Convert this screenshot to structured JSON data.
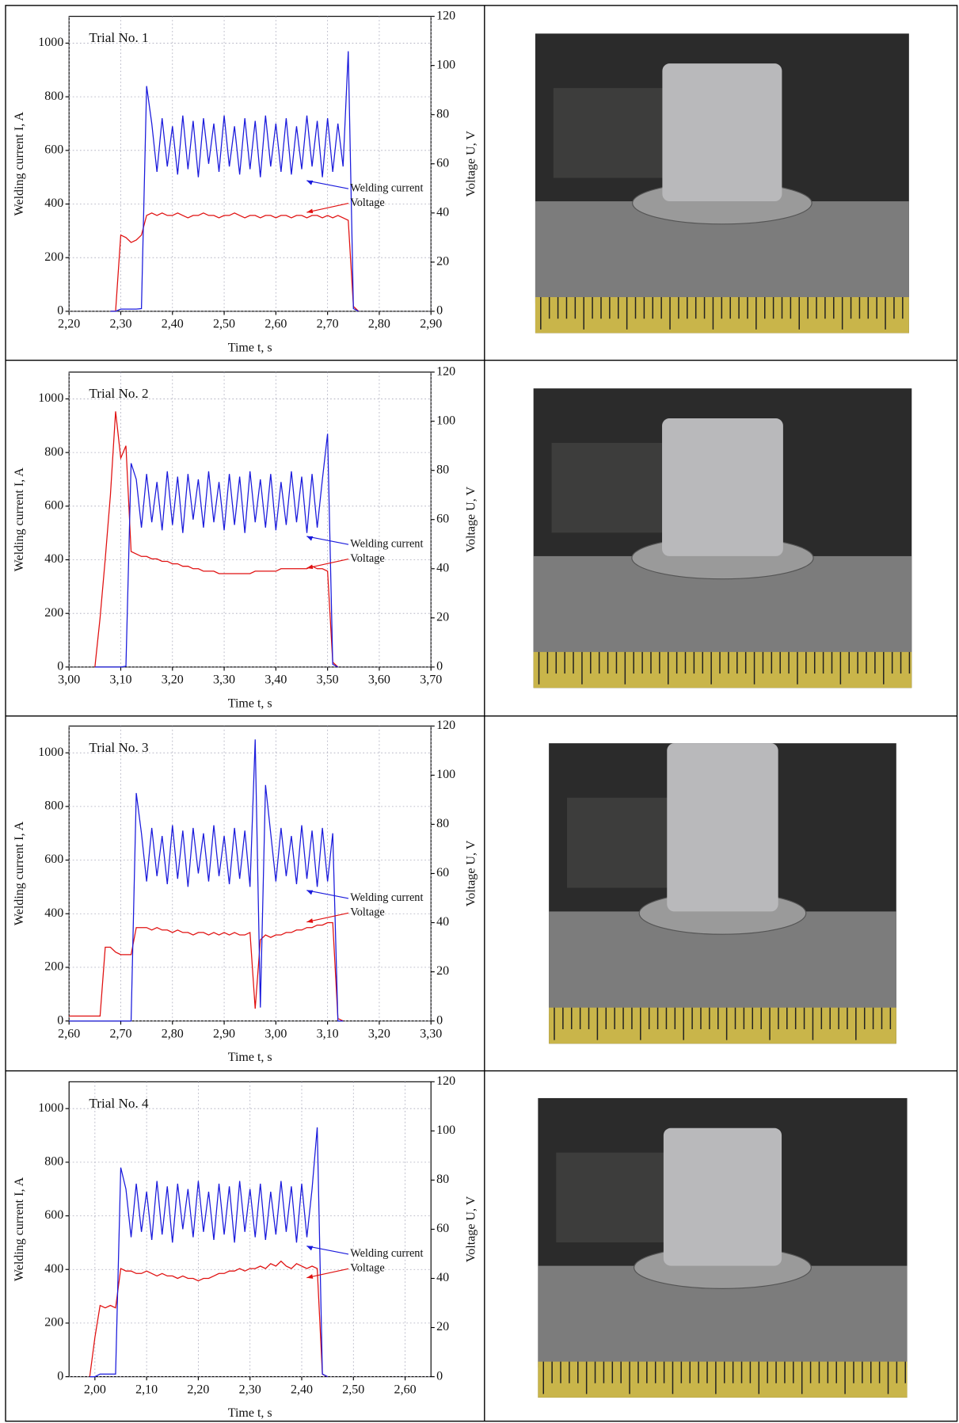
{
  "chart_data": [
    {
      "type": "line",
      "title": "Trial No. 1",
      "xlabel": "Time t, s",
      "ylabel": "Welding current I, A",
      "y2label": "Voltage U, V",
      "xlim": [
        2.2,
        2.9
      ],
      "xticks": [
        {
          "value": 2.2,
          "label": "2,20"
        },
        {
          "value": 2.3,
          "label": "2,30"
        },
        {
          "value": 2.4,
          "label": "2,40"
        },
        {
          "value": 2.5,
          "label": "2,50"
        },
        {
          "value": 2.6,
          "label": "2,60"
        },
        {
          "value": 2.7,
          "label": "2,70"
        },
        {
          "value": 2.8,
          "label": "2,80"
        },
        {
          "value": 2.9,
          "label": "2,90"
        }
      ],
      "ylim": [
        0,
        1100
      ],
      "yticks": [
        0,
        200,
        400,
        600,
        800,
        1000
      ],
      "y2lim": [
        0,
        120
      ],
      "y2ticks": [
        0,
        20,
        40,
        60,
        80,
        100,
        120
      ],
      "grid": true,
      "x": [
        2.28,
        2.29,
        2.3,
        2.31,
        2.32,
        2.33,
        2.34,
        2.35,
        2.36,
        2.37,
        2.38,
        2.39,
        2.4,
        2.41,
        2.42,
        2.43,
        2.44,
        2.45,
        2.46,
        2.47,
        2.48,
        2.49,
        2.5,
        2.51,
        2.52,
        2.53,
        2.54,
        2.55,
        2.56,
        2.57,
        2.58,
        2.59,
        2.6,
        2.61,
        2.62,
        2.63,
        2.64,
        2.65,
        2.66,
        2.67,
        2.68,
        2.69,
        2.7,
        2.71,
        2.72,
        2.73,
        2.74,
        2.75,
        2.76
      ],
      "series": [
        {
          "name": "Welding current",
          "color": "#1a1adc",
          "values": [
            0,
            0,
            8,
            8,
            8,
            8,
            10,
            840,
            700,
            520,
            720,
            540,
            690,
            510,
            730,
            530,
            710,
            500,
            720,
            550,
            700,
            520,
            730,
            540,
            690,
            510,
            720,
            530,
            710,
            500,
            730,
            540,
            700,
            520,
            720,
            510,
            690,
            530,
            730,
            540,
            710,
            500,
            720,
            520,
            700,
            540,
            970,
            10,
            0
          ]
        },
        {
          "name": "Voltage",
          "color": "#e01010",
          "axis": "y2",
          "values": [
            0,
            0,
            31,
            30,
            28,
            29,
            31,
            39,
            40,
            39,
            40,
            39,
            39,
            40,
            39,
            38,
            39,
            39,
            40,
            39,
            39,
            38,
            39,
            39,
            40,
            39,
            38,
            39,
            39,
            38,
            39,
            39,
            38,
            39,
            39,
            38,
            39,
            39,
            38,
            39,
            39,
            38,
            39,
            38,
            39,
            38,
            37,
            2,
            0
          ]
        }
      ]
    },
    {
      "type": "line",
      "title": "Trial No. 2",
      "xlabel": "Time t, s",
      "ylabel": "Welding current I, A",
      "y2label": "Voltage U, V",
      "xlim": [
        3.0,
        3.7
      ],
      "xticks": [
        {
          "value": 3.0,
          "label": "3,00"
        },
        {
          "value": 3.1,
          "label": "3,10"
        },
        {
          "value": 3.2,
          "label": "3,20"
        },
        {
          "value": 3.3,
          "label": "3,30"
        },
        {
          "value": 3.4,
          "label": "3,40"
        },
        {
          "value": 3.5,
          "label": "3,50"
        },
        {
          "value": 3.6,
          "label": "3,60"
        },
        {
          "value": 3.7,
          "label": "3,70"
        }
      ],
      "ylim": [
        0,
        1100
      ],
      "yticks": [
        0,
        200,
        400,
        600,
        800,
        1000
      ],
      "y2lim": [
        0,
        120
      ],
      "y2ticks": [
        0,
        20,
        40,
        60,
        80,
        100,
        120
      ],
      "grid": true,
      "x": [
        3.05,
        3.06,
        3.07,
        3.08,
        3.09,
        3.1,
        3.11,
        3.12,
        3.13,
        3.14,
        3.15,
        3.16,
        3.17,
        3.18,
        3.19,
        3.2,
        3.21,
        3.22,
        3.23,
        3.24,
        3.25,
        3.26,
        3.27,
        3.28,
        3.29,
        3.3,
        3.31,
        3.32,
        3.33,
        3.34,
        3.35,
        3.36,
        3.37,
        3.38,
        3.39,
        3.4,
        3.41,
        3.42,
        3.43,
        3.44,
        3.45,
        3.46,
        3.47,
        3.48,
        3.49,
        3.5,
        3.51,
        3.52
      ],
      "series": [
        {
          "name": "Welding current",
          "color": "#1a1adc",
          "values": [
            0,
            0,
            0,
            0,
            0,
            0,
            3,
            760,
            700,
            520,
            720,
            540,
            690,
            510,
            730,
            530,
            710,
            500,
            720,
            550,
            700,
            520,
            730,
            540,
            690,
            510,
            720,
            530,
            710,
            500,
            730,
            540,
            700,
            520,
            720,
            510,
            690,
            530,
            730,
            540,
            710,
            500,
            720,
            520,
            700,
            870,
            10,
            0
          ]
        },
        {
          "name": "Voltage",
          "color": "#e01010",
          "axis": "y2",
          "values": [
            0,
            20,
            44,
            70,
            104,
            85,
            90,
            47,
            46,
            45,
            45,
            44,
            44,
            43,
            43,
            42,
            42,
            41,
            41,
            40,
            40,
            39,
            39,
            39,
            38,
            38,
            38,
            38,
            38,
            38,
            38,
            39,
            39,
            39,
            39,
            39,
            40,
            40,
            40,
            40,
            40,
            40,
            41,
            40,
            40,
            39,
            2,
            0
          ]
        }
      ]
    },
    {
      "type": "line",
      "title": "Trial No. 3",
      "xlabel": "Time t, s",
      "ylabel": "Welding current I, A",
      "y2label": "Voltage U, V",
      "xlim": [
        2.6,
        3.3
      ],
      "xticks": [
        {
          "value": 2.6,
          "label": "2,60"
        },
        {
          "value": 2.7,
          "label": "2,70"
        },
        {
          "value": 2.8,
          "label": "2,80"
        },
        {
          "value": 2.9,
          "label": "2,90"
        },
        {
          "value": 3.0,
          "label": "3,00"
        },
        {
          "value": 3.1,
          "label": "3,10"
        },
        {
          "value": 3.2,
          "label": "3,20"
        },
        {
          "value": 3.3,
          "label": "3,30"
        }
      ],
      "ylim": [
        0,
        1100
      ],
      "yticks": [
        0,
        200,
        400,
        600,
        800,
        1000
      ],
      "y2lim": [
        0,
        120
      ],
      "y2ticks": [
        0,
        20,
        40,
        60,
        80,
        100,
        120
      ],
      "grid": true,
      "x": [
        2.6,
        2.65,
        2.66,
        2.67,
        2.68,
        2.69,
        2.7,
        2.71,
        2.72,
        2.73,
        2.74,
        2.75,
        2.76,
        2.77,
        2.78,
        2.79,
        2.8,
        2.81,
        2.82,
        2.83,
        2.84,
        2.85,
        2.86,
        2.87,
        2.88,
        2.89,
        2.9,
        2.91,
        2.92,
        2.93,
        2.94,
        2.95,
        2.96,
        2.97,
        2.98,
        2.99,
        3.0,
        3.01,
        3.02,
        3.03,
        3.04,
        3.05,
        3.06,
        3.07,
        3.08,
        3.09,
        3.1,
        3.11,
        3.12,
        3.13
      ],
      "series": [
        {
          "name": "Welding current",
          "color": "#1a1adc",
          "values": [
            0,
            0,
            0,
            0,
            0,
            0,
            0,
            0,
            0,
            850,
            700,
            520,
            720,
            540,
            690,
            510,
            730,
            530,
            710,
            500,
            720,
            550,
            700,
            520,
            730,
            540,
            690,
            510,
            720,
            530,
            710,
            500,
            1050,
            50,
            880,
            700,
            520,
            720,
            540,
            690,
            510,
            730,
            530,
            710,
            500,
            720,
            520,
            700,
            0,
            0
          ]
        },
        {
          "name": "Voltage",
          "color": "#e01010",
          "axis": "y2",
          "values": [
            2,
            2,
            2,
            30,
            30,
            28,
            27,
            27,
            27,
            38,
            38,
            38,
            37,
            38,
            37,
            37,
            36,
            37,
            36,
            36,
            35,
            36,
            36,
            35,
            36,
            35,
            36,
            35,
            36,
            35,
            35,
            36,
            5,
            33,
            35,
            34,
            35,
            35,
            36,
            36,
            37,
            37,
            38,
            38,
            39,
            39,
            40,
            40,
            1,
            0
          ]
        }
      ]
    },
    {
      "type": "line",
      "title": "Trial No. 4",
      "xlabel": "Time t, s",
      "ylabel": "Welding current I, A",
      "y2label": "Voltage U, V",
      "xlim": [
        1.95,
        2.65
      ],
      "xticks": [
        {
          "value": 2.0,
          "label": "2,00"
        },
        {
          "value": 2.1,
          "label": "2,10"
        },
        {
          "value": 2.2,
          "label": "2,20"
        },
        {
          "value": 2.3,
          "label": "2,30"
        },
        {
          "value": 2.4,
          "label": "2,40"
        },
        {
          "value": 2.5,
          "label": "2,50"
        },
        {
          "value": 2.6,
          "label": "2,60"
        }
      ],
      "ylim": [
        0,
        1100
      ],
      "yticks": [
        0,
        200,
        400,
        600,
        800,
        1000
      ],
      "y2lim": [
        0,
        120
      ],
      "y2ticks": [
        0,
        20,
        40,
        60,
        80,
        100,
        120
      ],
      "grid": true,
      "x": [
        1.99,
        2.0,
        2.01,
        2.02,
        2.03,
        2.04,
        2.05,
        2.06,
        2.07,
        2.08,
        2.09,
        2.1,
        2.11,
        2.12,
        2.13,
        2.14,
        2.15,
        2.16,
        2.17,
        2.18,
        2.19,
        2.2,
        2.21,
        2.22,
        2.23,
        2.24,
        2.25,
        2.26,
        2.27,
        2.28,
        2.29,
        2.3,
        2.31,
        2.32,
        2.33,
        2.34,
        2.35,
        2.36,
        2.37,
        2.38,
        2.39,
        2.4,
        2.41,
        2.42,
        2.43,
        2.44,
        2.45
      ],
      "series": [
        {
          "name": "Welding current",
          "color": "#1a1adc",
          "values": [
            0,
            0,
            10,
            10,
            10,
            10,
            780,
            700,
            520,
            720,
            540,
            690,
            510,
            730,
            530,
            710,
            500,
            720,
            550,
            700,
            520,
            730,
            540,
            690,
            510,
            720,
            530,
            710,
            500,
            730,
            540,
            700,
            520,
            720,
            510,
            690,
            530,
            730,
            540,
            710,
            500,
            720,
            520,
            700,
            930,
            10,
            0
          ]
        },
        {
          "name": "Voltage",
          "color": "#e01010",
          "axis": "y2",
          "values": [
            0,
            16,
            29,
            28,
            29,
            28,
            44,
            43,
            43,
            42,
            42,
            43,
            42,
            41,
            42,
            41,
            41,
            40,
            41,
            40,
            40,
            39,
            40,
            40,
            41,
            42,
            42,
            43,
            43,
            44,
            43,
            44,
            44,
            45,
            44,
            46,
            45,
            47,
            45,
            44,
            46,
            45,
            44,
            45,
            44,
            1,
            0
          ]
        }
      ]
    }
  ]
}
